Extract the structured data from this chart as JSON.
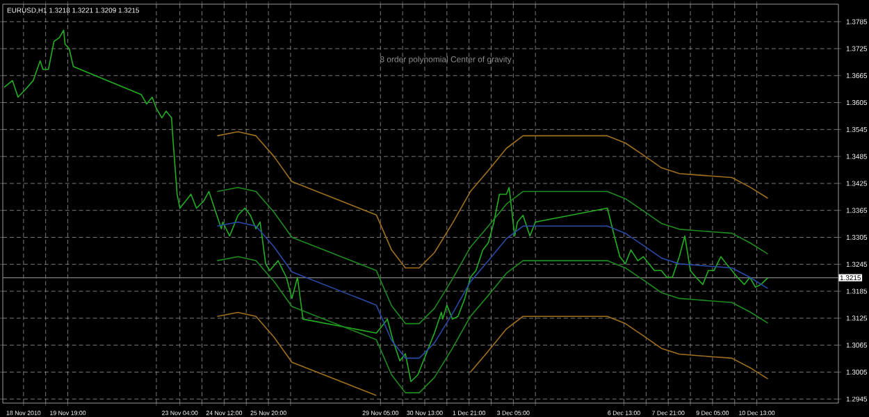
{
  "chart_data": {
    "type": "line",
    "title": "EURUSD,H1  1.3218 1.3221 1.3209 1.3215",
    "annotations": [
      "8 order polynomial Center of gravity"
    ],
    "xlim": [
      "2010-11-17T20:00",
      "2010-12-13T00:00"
    ],
    "ylim": [
      1.2936,
      1.3824
    ],
    "xticks": [
      {
        "value": "2010-11-18T11:00",
        "label": "18 Nov 2010"
      },
      {
        "value": "2010-11-19T03:00",
        "label": null
      },
      {
        "value": "2010-11-19T19:00",
        "label": "19 Nov 19:00"
      },
      {
        "value": "2010-11-22T11:00",
        "label": null
      },
      {
        "value": "2010-11-23T04:00",
        "label": "23 Nov 04:00"
      },
      {
        "value": "2010-11-23T20:00",
        "label": null
      },
      {
        "value": "2010-11-24T12:00",
        "label": "24 Nov 12:00"
      },
      {
        "value": "2010-11-25T04:00",
        "label": null
      },
      {
        "value": "2010-11-25T20:00",
        "label": "25 Nov 20:00"
      },
      {
        "value": "2010-11-26T12:00",
        "label": null
      },
      {
        "value": "2010-11-29T05:00",
        "label": "29 Nov 05:00"
      },
      {
        "value": "2010-11-29T21:00",
        "label": null
      },
      {
        "value": "2010-11-30T13:00",
        "label": "30 Nov 13:00"
      },
      {
        "value": "2010-12-01T05:00",
        "label": null
      },
      {
        "value": "2010-12-01T21:00",
        "label": "1 Dec 21:00"
      },
      {
        "value": "2010-12-02T13:00",
        "label": null
      },
      {
        "value": "2010-12-03T05:00",
        "label": "3 Dec 05:00"
      },
      {
        "value": "2010-12-03T21:00",
        "label": null
      },
      {
        "value": "2010-12-06T13:00",
        "label": "6 Dec 13:00"
      },
      {
        "value": "2010-12-07T05:00",
        "label": null
      },
      {
        "value": "2010-12-07T21:00",
        "label": "7 Dec 21:00"
      },
      {
        "value": "2010-12-08T13:00",
        "label": null
      },
      {
        "value": "2010-12-09T05:00",
        "label": "9 Dec 05:00"
      },
      {
        "value": "2010-12-09T21:00",
        "label": null
      },
      {
        "value": "2010-12-10T13:00",
        "label": "10 Dec 13:00"
      }
    ],
    "yticks": [
      1.2945,
      1.3005,
      1.3065,
      1.3125,
      1.3185,
      1.3245,
      1.3305,
      1.3365,
      1.3425,
      1.3485,
      1.3545,
      1.3605,
      1.3665,
      1.3725,
      1.3785
    ],
    "grid": true,
    "ref_lines": [
      {
        "axis": "y",
        "value": 1.3215,
        "label": "1.3215",
        "color": "#808080"
      }
    ],
    "series": [
      {
        "color": "#22b022",
        "x": [
          "2010-11-17T21:00",
          "2010-11-18T03:00",
          "2010-11-18T07:00",
          "2010-11-18T12:00",
          "2010-11-18T18:00",
          "2010-11-18T23:00",
          "2010-11-19T01:00",
          "2010-11-19T05:00",
          "2010-11-19T09:00",
          "2010-11-19T13:00",
          "2010-11-19T16:00",
          "2010-11-19T17:00",
          "2010-11-19T20:00",
          "2010-11-19T23:00",
          "2010-11-22T00:00",
          "2010-11-22T04:00",
          "2010-11-22T08:00",
          "2010-11-22T11:00",
          "2010-11-22T15:00",
          "2010-11-22T18:00",
          "2010-11-22T22:00",
          "2010-11-22T23:00",
          "2010-11-23T02:00",
          "2010-11-23T04:00",
          "2010-11-23T08:00",
          "2010-11-23T12:00",
          "2010-11-23T16:00",
          "2010-11-23T21:00",
          "2010-11-24T01:00",
          "2010-11-24T05:00",
          "2010-11-24T10:00",
          "2010-11-24T11:00",
          "2010-11-24T16:00",
          "2010-11-24T22:00",
          "2010-11-25T03:00",
          "2010-11-25T07:00",
          "2010-11-25T11:00",
          "2010-11-25T14:00",
          "2010-11-25T18:00",
          "2010-11-25T21:00",
          "2010-11-26T03:00",
          "2010-11-26T09:00",
          "2010-11-26T13:00",
          "2010-11-26T17:00",
          "2010-11-26T21:00",
          "2010-11-29T02:00",
          "2010-11-29T06:00",
          "2010-11-29T10:00",
          "2010-11-29T14:00",
          "2010-11-29T19:00",
          "2010-11-29T23:00",
          "2010-11-30T03:00",
          "2010-11-30T08:00",
          "2010-11-30T12:00",
          "2010-11-30T16:00",
          "2010-11-30T20:00",
          "2010-12-01T01:00",
          "2010-12-01T02:00",
          "2010-12-01T05:00",
          "2010-12-01T09:00",
          "2010-12-01T13:00",
          "2010-12-01T18:00",
          "2010-12-01T22:00",
          "2010-12-02T02:00",
          "2010-12-02T07:00",
          "2010-12-02T11:00",
          "2010-12-02T15:00",
          "2010-12-02T19:00",
          "2010-12-03T00:00",
          "2010-12-03T02:00",
          "2010-12-03T06:00",
          "2010-12-03T08:00",
          "2010-12-03T12:00",
          "2010-12-03T17:00",
          "2010-12-03T21:00",
          "2010-12-06T01:00",
          "2010-12-06T06:00",
          "2010-12-06T10:00",
          "2010-12-06T14:00",
          "2010-12-06T18:00",
          "2010-12-06T23:00",
          "2010-12-07T03:00",
          "2010-12-07T07:00",
          "2010-12-07T11:00",
          "2010-12-07T16:00",
          "2010-12-07T20:00",
          "2010-12-08T00:00",
          "2010-12-08T05:00",
          "2010-12-08T09:00",
          "2010-12-08T13:00",
          "2010-12-08T17:00",
          "2010-12-08T22:00",
          "2010-12-09T02:00",
          "2010-12-09T06:00",
          "2010-12-09T11:00",
          "2010-12-09T15:00",
          "2010-12-09T19:00",
          "2010-12-09T23:00",
          "2010-12-10T04:00",
          "2010-12-10T08:00",
          "2010-12-10T12:00",
          "2010-12-10T16:00",
          "2010-12-10T21:00"
        ],
        "values": [
          1.3639,
          1.3654,
          1.3617,
          1.3633,
          1.3654,
          1.3698,
          1.3679,
          1.3679,
          1.3741,
          1.375,
          1.3766,
          1.3735,
          1.3725,
          1.3685,
          1.3623,
          1.3602,
          1.3617,
          1.3592,
          1.3571,
          1.3586,
          1.3571,
          1.3524,
          1.3401,
          1.337,
          1.3385,
          1.3401,
          1.337,
          1.3385,
          1.3407,
          1.337,
          1.3324,
          1.3339,
          1.3308,
          1.3354,
          1.337,
          1.3354,
          1.3324,
          1.3339,
          1.3246,
          1.3231,
          1.3253,
          1.3216,
          1.3169,
          1.3216,
          1.3123,
          1.3092,
          1.3107,
          1.3123,
          1.3076,
          1.303,
          1.3046,
          1.2984,
          1.2999,
          1.303,
          1.3061,
          1.3092,
          1.3138,
          1.3123,
          1.3154,
          1.3123,
          1.3129,
          1.3169,
          1.3216,
          1.3231,
          1.3277,
          1.3293,
          1.3339,
          1.3401,
          1.3401,
          1.3416,
          1.3308,
          1.3339,
          1.3354,
          1.3308,
          1.3339,
          1.337,
          1.3308,
          1.3262,
          1.3246,
          1.3277,
          1.3253,
          1.3262,
          1.3246,
          1.3231,
          1.3231,
          1.3216,
          1.3216,
          1.3262,
          1.3308,
          1.3231,
          1.3216,
          1.32,
          1.3231,
          1.3231,
          1.3262,
          1.3246,
          1.3231,
          1.3216,
          1.32,
          1.3216,
          1.3194,
          1.32,
          1.3215
        ]
      },
      {
        "color": "#2a4aa8",
        "x": [
          "2010-11-24T07:00",
          "2010-11-24T22:00",
          "2010-11-25T11:00",
          "2010-11-26T00:00",
          "2010-11-26T13:00",
          "2010-11-29T02:00",
          "2010-11-29T13:00",
          "2010-11-29T23:00",
          "2010-11-30T09:00",
          "2010-11-30T20:00",
          "2010-12-01T09:00",
          "2010-12-01T22:00",
          "2010-12-02T11:00",
          "2010-12-03T00:00",
          "2010-12-03T12:00",
          "2010-12-06T01:00",
          "2010-12-06T14:00",
          "2010-12-07T03:00",
          "2010-12-07T16:00",
          "2010-12-08T05:00",
          "2010-12-08T17:00",
          "2010-12-09T06:00",
          "2010-12-09T19:00",
          "2010-12-10T08:00",
          "2010-12-10T21:00"
        ],
        "values": [
          1.333,
          1.3339,
          1.333,
          1.3284,
          1.3228,
          1.3154,
          1.3076,
          1.3036,
          1.3036,
          1.307,
          1.3135,
          1.3206,
          1.3253,
          1.3302,
          1.333,
          1.333,
          1.3314,
          1.3287,
          1.3259,
          1.3246,
          1.3243,
          1.324,
          1.3237,
          1.3216,
          1.3191
        ]
      },
      {
        "color": "#1e8c1e",
        "x": [
          "2010-11-24T07:00",
          "2010-11-24T22:00",
          "2010-11-25T11:00",
          "2010-11-26T00:00",
          "2010-11-26T13:00",
          "2010-11-29T02:00",
          "2010-11-29T13:00",
          "2010-11-29T23:00",
          "2010-11-30T09:00",
          "2010-11-30T20:00",
          "2010-12-01T09:00",
          "2010-12-01T22:00",
          "2010-12-02T11:00",
          "2010-12-03T00:00",
          "2010-12-03T12:00",
          "2010-12-06T01:00",
          "2010-12-06T14:00",
          "2010-12-07T03:00",
          "2010-12-07T16:00",
          "2010-12-08T05:00",
          "2010-12-08T17:00",
          "2010-12-09T06:00",
          "2010-12-09T19:00",
          "2010-12-10T08:00",
          "2010-12-10T21:00"
        ],
        "values": [
          1.3407,
          1.3416,
          1.3407,
          1.3361,
          1.3305,
          1.3231,
          1.3153,
          1.3113,
          1.3113,
          1.3147,
          1.3212,
          1.3283,
          1.333,
          1.3379,
          1.3407,
          1.3407,
          1.3391,
          1.3364,
          1.3336,
          1.3323,
          1.332,
          1.3317,
          1.3314,
          1.3293,
          1.3268
        ]
      },
      {
        "color": "#1e8c1e",
        "x": [
          "2010-11-24T07:00",
          "2010-11-24T22:00",
          "2010-11-25T11:00",
          "2010-11-26T00:00",
          "2010-11-26T13:00",
          "2010-11-29T02:00",
          "2010-11-29T13:00",
          "2010-11-29T23:00",
          "2010-11-30T09:00",
          "2010-11-30T20:00",
          "2010-12-01T09:00",
          "2010-12-01T22:00",
          "2010-12-02T11:00",
          "2010-12-03T00:00",
          "2010-12-03T12:00",
          "2010-12-06T01:00",
          "2010-12-06T14:00",
          "2010-12-07T03:00",
          "2010-12-07T16:00",
          "2010-12-08T05:00",
          "2010-12-08T17:00",
          "2010-12-09T06:00",
          "2010-12-09T19:00",
          "2010-12-10T08:00",
          "2010-12-10T21:00"
        ],
        "values": [
          1.3253,
          1.3262,
          1.3253,
          1.3207,
          1.3151,
          1.3077,
          1.2999,
          1.2959,
          1.2959,
          1.2993,
          1.3058,
          1.3129,
          1.3176,
          1.3225,
          1.3253,
          1.3253,
          1.3237,
          1.321,
          1.3182,
          1.3169,
          1.3166,
          1.3163,
          1.316,
          1.3139,
          1.3114
        ]
      },
      {
        "color": "#a0701e",
        "x": [
          "2010-11-24T07:00",
          "2010-11-24T22:00",
          "2010-11-25T11:00",
          "2010-11-26T00:00",
          "2010-11-26T13:00",
          "2010-11-29T02:00",
          "2010-11-29T13:00",
          "2010-11-29T23:00",
          "2010-11-30T09:00",
          "2010-11-30T20:00",
          "2010-12-01T09:00",
          "2010-12-01T22:00",
          "2010-12-02T11:00",
          "2010-12-03T00:00",
          "2010-12-03T12:00",
          "2010-12-06T01:00",
          "2010-12-06T14:00",
          "2010-12-07T03:00",
          "2010-12-07T16:00",
          "2010-12-08T05:00",
          "2010-12-08T17:00",
          "2010-12-09T06:00",
          "2010-12-09T19:00",
          "2010-12-10T08:00",
          "2010-12-10T21:00"
        ],
        "values": [
          1.3531,
          1.354,
          1.3531,
          1.3485,
          1.3429,
          1.3355,
          1.3277,
          1.3237,
          1.3237,
          1.3271,
          1.3336,
          1.3407,
          1.3454,
          1.3503,
          1.3531,
          1.3531,
          1.3515,
          1.3488,
          1.346,
          1.3447,
          1.3444,
          1.3441,
          1.3438,
          1.3417,
          1.3392
        ]
      },
      {
        "color": "#a0701e",
        "x": [
          "2010-11-24T07:00",
          "2010-11-24T22:00",
          "2010-11-25T11:00",
          "2010-11-26T00:00",
          "2010-11-26T13:00",
          "2010-11-29T02:00",
          "2010-11-29T13:00",
          "2010-11-29T23:00",
          "2010-11-30T09:00",
          "2010-11-30T20:00",
          "2010-12-01T09:00",
          "2010-12-01T22:00",
          "2010-12-02T11:00",
          "2010-12-03T00:00",
          "2010-12-03T12:00",
          "2010-12-06T01:00",
          "2010-12-06T14:00",
          "2010-12-07T03:00",
          "2010-12-07T16:00",
          "2010-12-08T05:00",
          "2010-12-08T17:00",
          "2010-12-09T06:00",
          "2010-12-09T19:00",
          "2010-12-10T08:00",
          "2010-12-10T21:00"
        ],
        "values": [
          1.3129,
          1.3138,
          1.3129,
          1.3083,
          1.3027,
          1.2953,
          null,
          null,
          null,
          null,
          null,
          1.3005,
          1.3052,
          1.3101,
          1.3129,
          1.3129,
          1.3113,
          1.3086,
          1.3058,
          1.3045,
          1.3042,
          1.3039,
          1.3036,
          1.3015,
          1.299
        ]
      }
    ]
  }
}
